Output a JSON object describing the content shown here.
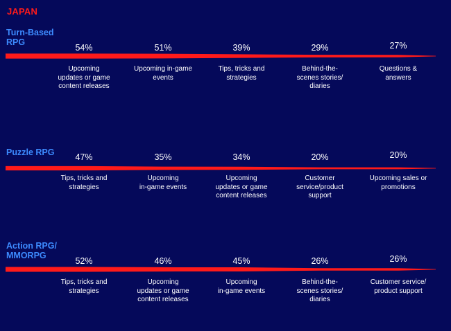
{
  "country": "JAPAN",
  "accent_color": "#ff1a1a",
  "segment_color": "#3d8bff",
  "chart_data": [
    {
      "type": "bar",
      "title": "Turn-Based\nRPG",
      "categories": [
        "Upcoming updates or game content releases",
        "Upcoming in-game events",
        "Tips, tricks and strategies",
        "Behind-the-scenes stories/ diaries",
        "Questions & answers"
      ],
      "category_labels": [
        "Upcoming\nupdates or game\ncontent releases",
        "Upcoming in-game\nevents",
        "Tips, tricks and\nstrategies",
        "Behind-the-\nscenes stories/\ndiaries",
        "Questions &\nanswers"
      ],
      "values": [
        54,
        51,
        39,
        29,
        27
      ],
      "labels": [
        "54%",
        "51%",
        "39%",
        "29%",
        "27%"
      ]
    },
    {
      "type": "bar",
      "title": "Puzzle RPG",
      "categories": [
        "Tips, tricks and strategies",
        "Upcoming in-game events",
        "Upcoming updates or game content releases",
        "Customer service/product support",
        "Upcoming sales or promotions"
      ],
      "category_labels": [
        "Tips, tricks and\nstrategies",
        "Upcoming\nin-game events",
        "Upcoming\nupdates or game\ncontent releases",
        "Customer\nservice/product\nsupport",
        "Upcoming sales or\npromotions"
      ],
      "values": [
        47,
        35,
        34,
        20,
        20
      ],
      "labels": [
        "47%",
        "35%",
        "34%",
        "20%",
        "20%"
      ]
    },
    {
      "type": "bar",
      "title": "Action RPG/\nMMORPG",
      "categories": [
        "Tips, tricks and strategies",
        "Upcoming updates or game content releases",
        "Upcoming in-game events",
        "Behind-the-scenes stories/ diaries",
        "Customer service/ product support"
      ],
      "category_labels": [
        "Tips, tricks and\nstrategies",
        "Upcoming\nupdates or game\ncontent releases",
        "Upcoming\nin-game events",
        "Behind-the-\nscenes stories/\ndiaries",
        "Customer service/\nproduct support"
      ],
      "values": [
        52,
        46,
        45,
        26,
        26
      ],
      "labels": [
        "52%",
        "46%",
        "45%",
        "26%",
        "26%"
      ]
    }
  ]
}
